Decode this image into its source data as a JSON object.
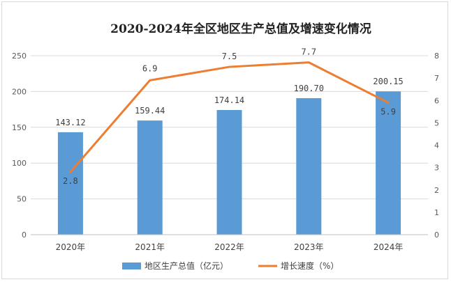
{
  "chart_data": {
    "type": "bar+line",
    "title": "2020-2024年全区地区生产总值及增速变化情况",
    "categories": [
      "2020年",
      "2021年",
      "2022年",
      "2023年",
      "2024年"
    ],
    "series": [
      {
        "name": "地区生产总值（亿元）",
        "type": "bar",
        "axis": "left",
        "values": [
          143.12,
          159.44,
          174.14,
          190.7,
          200.15
        ],
        "labels": [
          "143.12",
          "159.44",
          "174.14",
          "190.70",
          "200.15"
        ],
        "color": "#5b9bd5"
      },
      {
        "name": "增长速度（%）",
        "type": "line",
        "axis": "right",
        "values": [
          2.8,
          6.9,
          7.5,
          7.7,
          5.9
        ],
        "labels": [
          "2.8",
          "6.9",
          "7.5",
          "7.7",
          "5.9"
        ],
        "color": "#ed7d31"
      }
    ],
    "y_left": {
      "min": 0,
      "max": 250,
      "ticks": [
        "0",
        "50",
        "100",
        "150",
        "200",
        "250"
      ]
    },
    "y_right": {
      "min": 0,
      "max": 8,
      "ticks": [
        "0",
        "1",
        "2",
        "3",
        "4",
        "5",
        "6",
        "7",
        "8"
      ]
    },
    "grid": true,
    "legend_position": "bottom"
  }
}
